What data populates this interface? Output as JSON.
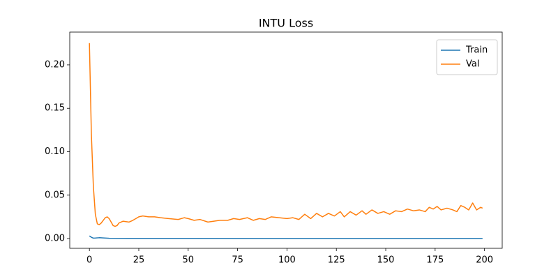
{
  "chart_data": {
    "type": "line",
    "title": "INTU Loss",
    "xlim": [
      -9.95,
      208.95
    ],
    "ylim": [
      -0.0112,
      0.2377
    ],
    "xticks": [
      0,
      25,
      50,
      75,
      100,
      125,
      150,
      175,
      200
    ],
    "yticks": [
      {
        "value": 0,
        "label": "0.00"
      },
      {
        "value": 0.05,
        "label": "0.05"
      },
      {
        "value": 0.1,
        "label": "0.10"
      },
      {
        "value": 0.15,
        "label": "0.15"
      },
      {
        "value": 0.2,
        "label": "0.20"
      }
    ],
    "grid": false,
    "legend": "upper right",
    "series": [
      {
        "name": "Train",
        "color": "#1f77b4",
        "x": [
          0,
          1,
          2,
          3,
          5,
          7,
          10,
          20,
          50,
          100,
          150,
          199
        ],
        "values": [
          0.003,
          0.0015,
          0.0005,
          0.0006,
          0.001,
          0.0007,
          0.0003,
          0.0002,
          0.0002,
          0.0001,
          0.0001,
          0.0001
        ]
      },
      {
        "name": "Val",
        "color": "#ff7f0e",
        "x": [
          0,
          1,
          2,
          3,
          4,
          5,
          6,
          7,
          8,
          9,
          10,
          11,
          12,
          13,
          14,
          15,
          17,
          20,
          22,
          25,
          27,
          30,
          33,
          36,
          40,
          45,
          48,
          50,
          53,
          56,
          60,
          63,
          66,
          70,
          73,
          76,
          80,
          83,
          86,
          89,
          92,
          96,
          100,
          103,
          106,
          109,
          112,
          115,
          118,
          121,
          124,
          127,
          129,
          132,
          135,
          138,
          140,
          143,
          146,
          149,
          152,
          155,
          158,
          161,
          164,
          167,
          170,
          172,
          174,
          176,
          178,
          181,
          184,
          186,
          188,
          190,
          192,
          194,
          196,
          198,
          199
        ],
        "values": [
          0.225,
          0.12,
          0.06,
          0.028,
          0.017,
          0.016,
          0.018,
          0.021,
          0.024,
          0.025,
          0.023,
          0.019,
          0.015,
          0.014,
          0.015,
          0.018,
          0.02,
          0.019,
          0.021,
          0.025,
          0.026,
          0.025,
          0.025,
          0.024,
          0.023,
          0.022,
          0.024,
          0.023,
          0.021,
          0.022,
          0.019,
          0.02,
          0.021,
          0.021,
          0.023,
          0.022,
          0.024,
          0.021,
          0.023,
          0.022,
          0.025,
          0.024,
          0.023,
          0.024,
          0.022,
          0.028,
          0.023,
          0.029,
          0.025,
          0.029,
          0.026,
          0.031,
          0.025,
          0.031,
          0.027,
          0.032,
          0.028,
          0.033,
          0.029,
          0.031,
          0.028,
          0.032,
          0.031,
          0.034,
          0.032,
          0.033,
          0.031,
          0.036,
          0.034,
          0.037,
          0.033,
          0.035,
          0.033,
          0.031,
          0.038,
          0.036,
          0.033,
          0.041,
          0.033,
          0.036,
          0.035
        ]
      }
    ]
  }
}
